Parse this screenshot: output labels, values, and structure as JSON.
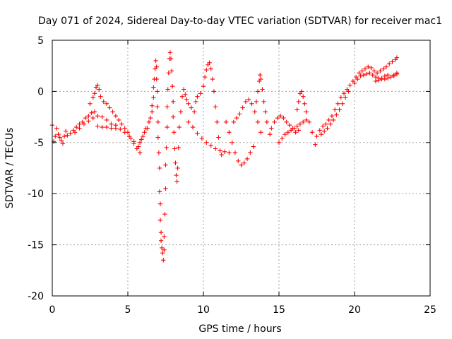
{
  "chart_data": {
    "type": "scatter",
    "title": "Day 071 of 2024, Sidereal Day-to-day VTEC variation (SDTVAR) for receiver mac1",
    "xlabel": "GPS time / hours",
    "ylabel": "SDTVAR / TECUs",
    "xlim": [
      0,
      25
    ],
    "ylim": [
      -20,
      5
    ],
    "xticks": [
      0,
      5,
      10,
      15,
      20,
      25
    ],
    "yticks": [
      -20,
      -15,
      -10,
      -5,
      0,
      5
    ],
    "xtick_labels": [
      "0",
      "5",
      "10",
      "15",
      "20",
      "25"
    ],
    "ytick_labels": [
      "-20",
      "-15",
      "-10",
      "-5",
      "0",
      "5"
    ],
    "grid": true,
    "marker": "+",
    "color": "#ff0000",
    "series": [
      {
        "name": "SDTVAR",
        "points": [
          [
            0.0,
            -3.3
          ],
          [
            0.1,
            -4.9
          ],
          [
            0.2,
            -4.4
          ],
          [
            0.3,
            -3.6
          ],
          [
            0.4,
            -4.2
          ],
          [
            0.5,
            -4.5
          ],
          [
            0.6,
            -4.8
          ],
          [
            0.7,
            -5.1
          ],
          [
            0.8,
            -4.4
          ],
          [
            0.9,
            -3.9
          ],
          [
            1.0,
            -4.3
          ],
          [
            1.2,
            -4.1
          ],
          [
            1.4,
            -3.8
          ],
          [
            1.6,
            -3.5
          ],
          [
            1.8,
            -3.2
          ],
          [
            2.0,
            -3.0
          ],
          [
            2.2,
            -2.6
          ],
          [
            2.4,
            -2.4
          ],
          [
            2.6,
            -2.1
          ],
          [
            2.8,
            -2.0
          ],
          [
            1.5,
            -4.0
          ],
          [
            1.8,
            -3.6
          ],
          [
            2.1,
            -3.2
          ],
          [
            2.4,
            -2.9
          ],
          [
            2.7,
            -2.6
          ],
          [
            3.0,
            -2.4
          ],
          [
            3.3,
            -2.5
          ],
          [
            3.6,
            -2.8
          ],
          [
            3.9,
            -3.2
          ],
          [
            4.2,
            -3.3
          ],
          [
            2.5,
            -1.2
          ],
          [
            2.7,
            -0.6
          ],
          [
            2.8,
            -0.2
          ],
          [
            2.9,
            0.4
          ],
          [
            3.0,
            0.6
          ],
          [
            3.1,
            0.2
          ],
          [
            3.2,
            -0.5
          ],
          [
            3.4,
            -1.0
          ],
          [
            3.6,
            -1.2
          ],
          [
            3.8,
            -1.6
          ],
          [
            4.0,
            -2.0
          ],
          [
            4.2,
            -2.4
          ],
          [
            4.4,
            -2.8
          ],
          [
            4.6,
            -3.2
          ],
          [
            4.8,
            -3.6
          ],
          [
            5.0,
            -4.0
          ],
          [
            5.2,
            -4.6
          ],
          [
            5.4,
            -5.1
          ],
          [
            5.6,
            -5.6
          ],
          [
            5.8,
            -6.0
          ],
          [
            3.0,
            -3.4
          ],
          [
            3.3,
            -3.5
          ],
          [
            3.6,
            -3.5
          ],
          [
            3.9,
            -3.6
          ],
          [
            4.2,
            -3.6
          ],
          [
            4.5,
            -3.7
          ],
          [
            4.8,
            -4.0
          ],
          [
            5.1,
            -4.4
          ],
          [
            5.4,
            -4.9
          ],
          [
            5.7,
            -5.4
          ],
          [
            5.8,
            -5.0
          ],
          [
            5.9,
            -4.7
          ],
          [
            6.0,
            -4.4
          ],
          [
            6.1,
            -4.0
          ],
          [
            6.2,
            -3.6
          ],
          [
            6.3,
            -3.6
          ],
          [
            6.4,
            -3.0
          ],
          [
            6.5,
            -2.6
          ],
          [
            6.6,
            -2.0
          ],
          [
            6.6,
            -1.4
          ],
          [
            6.7,
            -0.6
          ],
          [
            6.7,
            0.4
          ],
          [
            6.75,
            1.2
          ],
          [
            6.8,
            2.2
          ],
          [
            6.85,
            3.0
          ],
          [
            6.9,
            2.4
          ],
          [
            6.9,
            1.2
          ],
          [
            6.95,
            0.0
          ],
          [
            6.95,
            -1.5
          ],
          [
            7.0,
            -3.0
          ],
          [
            7.0,
            -4.5
          ],
          [
            7.05,
            -6.0
          ],
          [
            7.1,
            -7.5
          ],
          [
            7.1,
            -9.8
          ],
          [
            7.15,
            -11.0
          ],
          [
            7.15,
            -12.6
          ],
          [
            7.2,
            -13.8
          ],
          [
            7.2,
            -14.6
          ],
          [
            7.25,
            -15.3
          ],
          [
            7.3,
            -15.8
          ],
          [
            7.35,
            -16.5
          ],
          [
            7.4,
            -15.5
          ],
          [
            7.4,
            -14.2
          ],
          [
            7.45,
            -12.0
          ],
          [
            7.5,
            -9.5
          ],
          [
            7.5,
            -7.2
          ],
          [
            7.55,
            -5.5
          ],
          [
            7.6,
            -3.5
          ],
          [
            7.6,
            -1.5
          ],
          [
            7.65,
            0.2
          ],
          [
            7.7,
            1.8
          ],
          [
            7.75,
            3.2
          ],
          [
            7.8,
            3.8
          ],
          [
            7.85,
            3.2
          ],
          [
            7.9,
            2.0
          ],
          [
            7.95,
            0.5
          ],
          [
            8.0,
            -1.0
          ],
          [
            8.0,
            -2.5
          ],
          [
            8.05,
            -4.0
          ],
          [
            8.1,
            -5.6
          ],
          [
            8.15,
            -7.0
          ],
          [
            8.2,
            -8.2
          ],
          [
            8.25,
            -8.8
          ],
          [
            8.3,
            -7.5
          ],
          [
            8.35,
            -5.5
          ],
          [
            8.4,
            -3.5
          ],
          [
            8.5,
            -2.0
          ],
          [
            8.6,
            -0.5
          ],
          [
            8.7,
            0.2
          ],
          [
            8.8,
            -0.3
          ],
          [
            8.9,
            -0.8
          ],
          [
            9.0,
            -1.2
          ],
          [
            9.2,
            -1.6
          ],
          [
            9.4,
            -2.0
          ],
          [
            9.5,
            -1.0
          ],
          [
            9.6,
            -0.5
          ],
          [
            9.8,
            -0.2
          ],
          [
            10.0,
            0.5
          ],
          [
            10.1,
            1.4
          ],
          [
            10.2,
            2.1
          ],
          [
            10.3,
            2.6
          ],
          [
            10.4,
            2.8
          ],
          [
            10.5,
            2.2
          ],
          [
            10.6,
            1.2
          ],
          [
            10.7,
            0.0
          ],
          [
            10.8,
            -1.5
          ],
          [
            10.9,
            -3.0
          ],
          [
            11.0,
            -4.5
          ],
          [
            11.1,
            -5.8
          ],
          [
            11.2,
            -6.2
          ],
          [
            9.0,
            -3.0
          ],
          [
            9.3,
            -3.5
          ],
          [
            9.6,
            -4.1
          ],
          [
            9.9,
            -4.6
          ],
          [
            10.2,
            -5.0
          ],
          [
            10.5,
            -5.3
          ],
          [
            10.8,
            -5.6
          ],
          [
            11.1,
            -5.8
          ],
          [
            11.4,
            -5.9
          ],
          [
            11.7,
            -6.0
          ],
          [
            11.5,
            -3.0
          ],
          [
            11.7,
            -4.0
          ],
          [
            11.9,
            -5.0
          ],
          [
            12.1,
            -6.0
          ],
          [
            12.3,
            -6.8
          ],
          [
            12.5,
            -7.2
          ],
          [
            12.7,
            -7.0
          ],
          [
            12.9,
            -6.6
          ],
          [
            13.1,
            -6.0
          ],
          [
            13.3,
            -5.4
          ],
          [
            12.0,
            -3.0
          ],
          [
            12.2,
            -2.6
          ],
          [
            12.4,
            -2.2
          ],
          [
            12.6,
            -1.6
          ],
          [
            12.8,
            -1.0
          ],
          [
            13.0,
            -0.8
          ],
          [
            13.2,
            -1.2
          ],
          [
            13.4,
            -2.0
          ],
          [
            13.6,
            -3.0
          ],
          [
            13.8,
            -4.0
          ],
          [
            13.5,
            -1.0
          ],
          [
            13.6,
            0.0
          ],
          [
            13.7,
            1.0
          ],
          [
            13.75,
            1.6
          ],
          [
            13.8,
            1.2
          ],
          [
            13.9,
            0.2
          ],
          [
            14.0,
            -1.0
          ],
          [
            14.1,
            -2.0
          ],
          [
            14.2,
            -3.0
          ],
          [
            14.4,
            -4.2
          ],
          [
            14.5,
            -3.6
          ],
          [
            14.7,
            -3.0
          ],
          [
            14.9,
            -2.6
          ],
          [
            15.1,
            -2.4
          ],
          [
            15.3,
            -2.6
          ],
          [
            15.5,
            -3.0
          ],
          [
            15.7,
            -3.3
          ],
          [
            15.9,
            -3.6
          ],
          [
            16.1,
            -4.0
          ],
          [
            16.3,
            -3.8
          ],
          [
            15.0,
            -5.0
          ],
          [
            15.2,
            -4.6
          ],
          [
            15.4,
            -4.2
          ],
          [
            15.6,
            -4.0
          ],
          [
            15.8,
            -3.8
          ],
          [
            16.0,
            -3.6
          ],
          [
            16.2,
            -3.4
          ],
          [
            16.4,
            -3.2
          ],
          [
            16.6,
            -3.0
          ],
          [
            16.8,
            -2.8
          ],
          [
            16.2,
            -1.8
          ],
          [
            16.3,
            -1.0
          ],
          [
            16.4,
            -0.2
          ],
          [
            16.5,
            0.0
          ],
          [
            16.6,
            -0.5
          ],
          [
            16.7,
            -1.2
          ],
          [
            16.8,
            -2.0
          ],
          [
            17.0,
            -3.0
          ],
          [
            17.2,
            -4.0
          ],
          [
            17.4,
            -5.2
          ],
          [
            17.5,
            -4.4
          ],
          [
            17.7,
            -3.8
          ],
          [
            17.9,
            -3.4
          ],
          [
            18.1,
            -3.2
          ],
          [
            18.3,
            -2.8
          ],
          [
            18.5,
            -2.4
          ],
          [
            18.7,
            -1.8
          ],
          [
            18.9,
            -1.2
          ],
          [
            19.1,
            -0.6
          ],
          [
            19.3,
            -0.2
          ],
          [
            17.8,
            -4.2
          ],
          [
            18.0,
            -3.9
          ],
          [
            18.2,
            -3.6
          ],
          [
            18.4,
            -3.2
          ],
          [
            18.6,
            -2.8
          ],
          [
            18.8,
            -2.3
          ],
          [
            19.0,
            -1.8
          ],
          [
            19.2,
            -1.2
          ],
          [
            19.4,
            -0.6
          ],
          [
            19.6,
            0.0
          ],
          [
            19.5,
            0.2
          ],
          [
            19.7,
            0.6
          ],
          [
            19.9,
            1.0
          ],
          [
            20.1,
            1.4
          ],
          [
            20.3,
            1.8
          ],
          [
            20.5,
            2.0
          ],
          [
            20.7,
            2.2
          ],
          [
            20.9,
            2.4
          ],
          [
            21.1,
            2.3
          ],
          [
            21.3,
            2.0
          ],
          [
            20.0,
            0.8
          ],
          [
            20.2,
            1.2
          ],
          [
            20.4,
            1.5
          ],
          [
            20.6,
            1.6
          ],
          [
            20.8,
            1.7
          ],
          [
            21.0,
            1.8
          ],
          [
            21.2,
            1.6
          ],
          [
            21.4,
            1.4
          ],
          [
            21.6,
            1.3
          ],
          [
            21.8,
            1.2
          ],
          [
            21.5,
            1.8
          ],
          [
            21.7,
            2.0
          ],
          [
            21.9,
            2.2
          ],
          [
            22.1,
            2.4
          ],
          [
            22.3,
            2.7
          ],
          [
            22.5,
            2.9
          ],
          [
            22.7,
            3.1
          ],
          [
            22.8,
            3.3
          ],
          [
            22.6,
            1.6
          ],
          [
            22.8,
            1.8
          ],
          [
            22.0,
            1.2
          ],
          [
            22.2,
            1.3
          ],
          [
            22.4,
            1.4
          ],
          [
            22.6,
            1.5
          ],
          [
            22.8,
            1.7
          ],
          [
            21.4,
            1.0
          ],
          [
            21.6,
            1.1
          ],
          [
            21.8,
            1.3
          ],
          [
            22.0,
            1.5
          ],
          [
            22.2,
            1.6
          ]
        ]
      }
    ]
  }
}
